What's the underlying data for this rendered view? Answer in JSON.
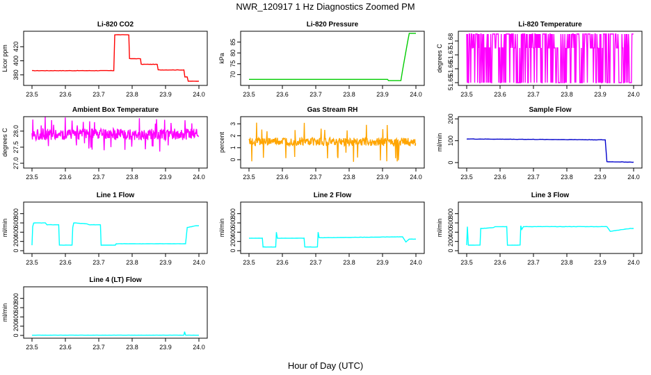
{
  "figure": {
    "title": "NWR_120917  1 Hz Diagnostics Zoomed PM",
    "xlabel": "Hour of Day (UTC)"
  },
  "chart_data": [
    {
      "type": "line",
      "title": "Li-820 CO2",
      "ylabel": "Licor ppm",
      "color": "#ff0000",
      "xlim": [
        23.48,
        24.02
      ],
      "ylim": [
        365,
        442
      ],
      "xticks": [
        "23.5",
        "23.6",
        "23.7",
        "23.8",
        "23.9",
        "24.0"
      ],
      "yticks": [
        "380",
        "400",
        "420"
      ],
      "noise": 0.4,
      "series": [
        {
          "x": [
            23.5,
            23.7,
            23.745,
            23.748,
            23.79,
            23.792,
            23.825,
            23.827,
            23.875,
            23.878,
            23.955,
            23.958,
            23.965,
            23.968,
            24.0
          ],
          "y": [
            386,
            386,
            386,
            437,
            437,
            403,
            403,
            395,
            395,
            387,
            387,
            377,
            377,
            371,
            371
          ]
        }
      ]
    },
    {
      "type": "line",
      "title": "Li-820 Pressure",
      "ylabel": "kPa",
      "color": "#00cc00",
      "xlim": [
        23.48,
        24.02
      ],
      "ylim": [
        65,
        90
      ],
      "xticks": [
        "23.5",
        "23.6",
        "23.7",
        "23.8",
        "23.9",
        "24.0"
      ],
      "yticks": [
        "70",
        "75",
        "80",
        "85"
      ],
      "noise": 0,
      "series": [
        {
          "x": [
            23.5,
            23.915,
            23.918,
            23.955,
            23.96,
            23.975,
            23.98,
            24.0
          ],
          "y": [
            67.8,
            67.8,
            67.2,
            67.2,
            72,
            85,
            89,
            89
          ]
        }
      ]
    },
    {
      "type": "binary",
      "title": "Li-820 Temperature",
      "ylabel": "degrees C",
      "color": "#ff00ff",
      "xlim": [
        23.48,
        24.02
      ],
      "ylim": [
        51.648,
        51.687
      ],
      "xticks": [
        "23.5",
        "23.6",
        "23.7",
        "23.8",
        "23.9",
        "24.0"
      ],
      "yticks": [
        "51.65",
        "51.66",
        "51.67",
        "51.68"
      ],
      "levels": [
        51.65,
        51.675,
        51.685
      ],
      "series": [
        {
          "x": [
            23.5,
            24.0
          ]
        }
      ]
    },
    {
      "type": "noise",
      "title": "Ambient Box Temperature",
      "ylabel": "degrees C",
      "color": "#ff00ff",
      "xlim": [
        23.48,
        24.02
      ],
      "ylim": [
        26.85,
        28.45
      ],
      "xticks": [
        "23.5",
        "23.6",
        "23.7",
        "23.8",
        "23.9",
        "24.0"
      ],
      "yticks": [
        "27.0",
        "27.5",
        "28.0"
      ],
      "base": 27.9,
      "amp": 0.18,
      "spike": 0.55,
      "series": [
        {
          "x": [
            23.5,
            24.0
          ]
        }
      ]
    },
    {
      "type": "noise",
      "title": "Gas Stream RH",
      "ylabel": "percent",
      "color": "#ffa500",
      "xlim": [
        23.48,
        24.02
      ],
      "ylim": [
        -0.7,
        3.6
      ],
      "xticks": [
        "23.5",
        "23.6",
        "23.7",
        "23.8",
        "23.9",
        "24.0"
      ],
      "yticks": [
        "0",
        "1",
        "2",
        "3"
      ],
      "base": 1.5,
      "amp": 0.35,
      "spike": 1.7,
      "series": [
        {
          "x": [
            23.5,
            24.0
          ]
        }
      ]
    },
    {
      "type": "line",
      "title": "Sample Flow",
      "ylabel": "ml/min",
      "color": "#0000cc",
      "xlim": [
        23.48,
        24.02
      ],
      "ylim": [
        -25,
        210
      ],
      "xticks": [
        "23.5",
        "23.6",
        "23.7",
        "23.8",
        "23.9",
        "24.0"
      ],
      "yticks": [
        "0",
        "100",
        "200"
      ],
      "noise": 1.5,
      "series": [
        {
          "x": [
            23.5,
            23.915,
            23.92,
            24.0
          ],
          "y": [
            108,
            104,
            4,
            2
          ]
        }
      ]
    },
    {
      "type": "line",
      "title": "Line 1 Flow",
      "ylabel": "ml/min",
      "color": "#00ffff",
      "xlim": [
        23.48,
        24.02
      ],
      "ylim": [
        -60,
        1050
      ],
      "xticks": [
        "23.5",
        "23.6",
        "23.7",
        "23.8",
        "23.9",
        "24.0"
      ],
      "yticks": [
        "0",
        "200",
        "400",
        "600",
        "800"
      ],
      "noise": 5,
      "series": [
        {
          "x": [
            23.5,
            23.502,
            23.505,
            23.54,
            23.545,
            23.58,
            23.582,
            23.62,
            23.622,
            23.625,
            23.665,
            23.67,
            23.705,
            23.707,
            23.75,
            23.752,
            23.955,
            23.96,
            23.965,
            23.99,
            24.0
          ],
          "y": [
            120,
            520,
            600,
            600,
            560,
            560,
            120,
            120,
            500,
            600,
            580,
            560,
            560,
            120,
            120,
            150,
            150,
            150,
            500,
            540,
            540
          ]
        }
      ]
    },
    {
      "type": "line",
      "title": "Line 2 Flow",
      "ylabel": "ml/min",
      "color": "#00ffff",
      "xlim": [
        23.48,
        24.02
      ],
      "ylim": [
        -60,
        1050
      ],
      "xticks": [
        "23.5",
        "23.6",
        "23.7",
        "23.8",
        "23.9",
        "24.0"
      ],
      "yticks": [
        "0",
        "200",
        "400",
        "600",
        "800"
      ],
      "noise": 5,
      "series": [
        {
          "x": [
            23.5,
            23.54,
            23.542,
            23.58,
            23.582,
            23.585,
            23.665,
            23.667,
            23.705,
            23.707,
            23.71,
            23.96,
            23.97,
            23.98,
            24.0
          ],
          "y": [
            270,
            270,
            80,
            80,
            400,
            270,
            270,
            80,
            80,
            400,
            280,
            300,
            190,
            250,
            250
          ]
        }
      ]
    },
    {
      "type": "line",
      "title": "Line 3 Flow",
      "ylabel": "ml/min",
      "color": "#00ffff",
      "xlim": [
        23.48,
        24.02
      ],
      "ylim": [
        -60,
        1050
      ],
      "xticks": [
        "23.5",
        "23.6",
        "23.7",
        "23.8",
        "23.9",
        "24.0"
      ],
      "yticks": [
        "0",
        "200",
        "400",
        "600",
        "800"
      ],
      "noise": 5,
      "series": [
        {
          "x": [
            23.5,
            23.502,
            23.505,
            23.54,
            23.542,
            23.545,
            23.58,
            23.585,
            23.62,
            23.622,
            23.625,
            23.66,
            23.662,
            23.665,
            23.67,
            23.92,
            23.93,
            23.99,
            24.0
          ],
          "y": [
            120,
            520,
            120,
            120,
            480,
            480,
            500,
            520,
            520,
            120,
            120,
            120,
            540,
            460,
            520,
            520,
            420,
            480,
            480
          ]
        }
      ]
    },
    {
      "type": "line",
      "title": "Line 4 (LT) Flow",
      "ylabel": "ml/min",
      "color": "#00ffff",
      "xlim": [
        23.48,
        24.02
      ],
      "ylim": [
        -60,
        1050
      ],
      "xticks": [
        "23.5",
        "23.6",
        "23.7",
        "23.8",
        "23.9",
        "24.0"
      ],
      "yticks": [
        "0",
        "200",
        "400",
        "600",
        "800"
      ],
      "noise": 2,
      "series": [
        {
          "x": [
            23.5,
            23.955,
            23.957,
            23.96,
            24.0
          ],
          "y": [
            5,
            5,
            80,
            5,
            5
          ]
        }
      ]
    }
  ]
}
